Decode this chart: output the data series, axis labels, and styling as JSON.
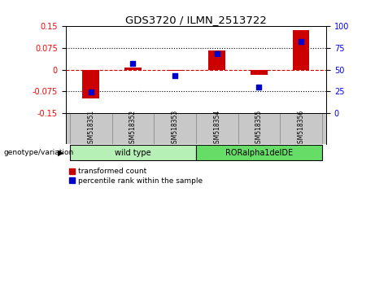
{
  "title": "GDS3720 / ILMN_2513722",
  "samples": [
    "GSM518351",
    "GSM518352",
    "GSM518353",
    "GSM518354",
    "GSM518355",
    "GSM518356"
  ],
  "transformed_counts": [
    -0.098,
    0.008,
    -0.005,
    0.065,
    -0.018,
    0.135
  ],
  "percentile_ranks": [
    24,
    57,
    43,
    68,
    30,
    82
  ],
  "ylim_left": [
    -0.15,
    0.15
  ],
  "ylim_right": [
    0,
    100
  ],
  "yticks_left": [
    -0.15,
    -0.075,
    0,
    0.075,
    0.15
  ],
  "yticks_right": [
    0,
    25,
    50,
    75,
    100
  ],
  "bar_color": "#cc0000",
  "scatter_color": "#0000cc",
  "hline_color": "#cc0000",
  "dotted_color": "black",
  "background_color": "#ffffff",
  "plot_bg": "#ffffff",
  "sample_label_bg": "#c8c8c8",
  "wt_color": "#b6f0b6",
  "ror_color": "#66dd66",
  "legend_labels": [
    "transformed count",
    "percentile rank within the sample"
  ],
  "genotype_label": "genotype/variation",
  "bar_width": 0.4
}
